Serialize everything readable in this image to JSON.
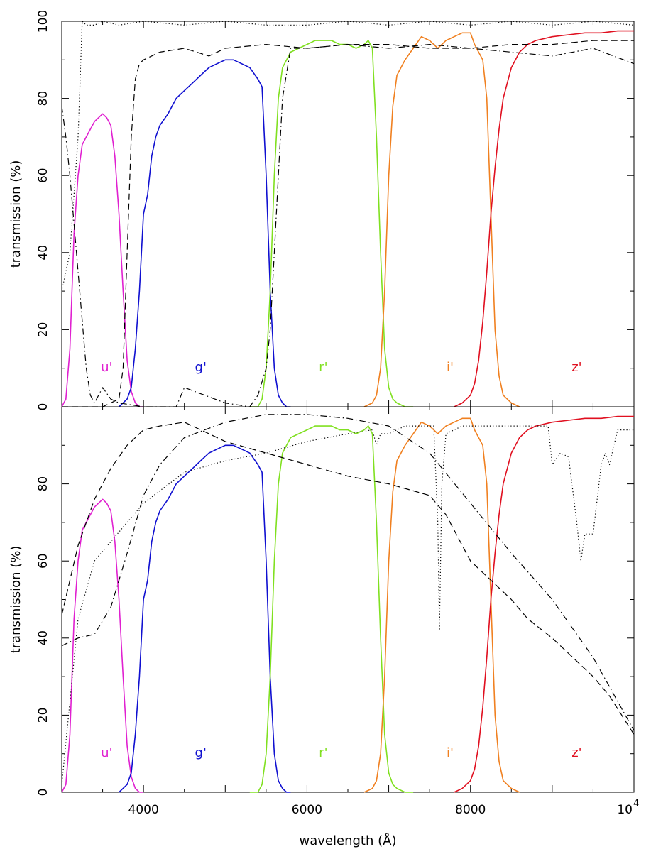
{
  "chart_data": [
    {
      "type": "line",
      "xlabel": "",
      "ylabel": "transmission (%)",
      "xlim": [
        3000,
        10000
      ],
      "ylim": [
        0,
        100
      ],
      "yticks": [
        "0",
        "20",
        "40",
        "60",
        "80",
        "100"
      ],
      "xticks": [],
      "series": [
        {
          "name": "u'",
          "color": "#e020d0",
          "style": "solid",
          "x": [
            3000,
            3050,
            3100,
            3150,
            3200,
            3250,
            3300,
            3350,
            3400,
            3450,
            3500,
            3550,
            3600,
            3650,
            3700,
            3750,
            3800,
            3850,
            3900,
            3950,
            4000
          ],
          "y": [
            0,
            2,
            15,
            45,
            60,
            68,
            70,
            72,
            74,
            75,
            76,
            75,
            73,
            65,
            50,
            30,
            12,
            4,
            1,
            0,
            0
          ]
        },
        {
          "name": "g'",
          "color": "#1010d0",
          "style": "solid",
          "x": [
            3700,
            3800,
            3850,
            3900,
            3950,
            4000,
            4050,
            4100,
            4150,
            4200,
            4300,
            4400,
            4500,
            4600,
            4700,
            4800,
            4900,
            5000,
            5100,
            5200,
            5300,
            5400,
            5450,
            5500,
            5550,
            5600,
            5650,
            5700,
            5750,
            5800
          ],
          "y": [
            0,
            2,
            5,
            15,
            30,
            50,
            55,
            65,
            70,
            73,
            76,
            80,
            82,
            84,
            86,
            88,
            89,
            90,
            90,
            89,
            88,
            85,
            83,
            60,
            30,
            10,
            3,
            1,
            0,
            0
          ]
        },
        {
          "name": "r'",
          "color": "#80e020",
          "style": "solid",
          "x": [
            5300,
            5400,
            5450,
            5500,
            5550,
            5600,
            5650,
            5700,
            5800,
            5900,
            6000,
            6100,
            6200,
            6300,
            6400,
            6500,
            6600,
            6700,
            6750,
            6800,
            6850,
            6900,
            6950,
            7000,
            7050,
            7100,
            7200,
            7300
          ],
          "y": [
            0,
            0,
            2,
            10,
            30,
            60,
            80,
            88,
            92,
            93,
            94,
            95,
            95,
            95,
            94,
            94,
            93,
            94,
            95,
            93,
            70,
            40,
            15,
            5,
            2,
            1,
            0,
            0
          ]
        },
        {
          "name": "i'",
          "color": "#f08020",
          "style": "solid",
          "x": [
            6700,
            6800,
            6850,
            6900,
            6950,
            7000,
            7050,
            7100,
            7200,
            7300,
            7400,
            7500,
            7600,
            7700,
            7800,
            7900,
            8000,
            8050,
            8100,
            8150,
            8200,
            8250,
            8300,
            8350,
            8400,
            8500,
            8600
          ],
          "y": [
            0,
            1,
            3,
            10,
            30,
            60,
            78,
            86,
            90,
            93,
            96,
            95,
            93,
            95,
            96,
            97,
            97,
            94,
            92,
            90,
            80,
            50,
            20,
            8,
            3,
            1,
            0
          ]
        },
        {
          "name": "z'",
          "color": "#e01020",
          "style": "solid",
          "x": [
            7800,
            7900,
            8000,
            8050,
            8100,
            8150,
            8200,
            8250,
            8300,
            8350,
            8400,
            8500,
            8600,
            8700,
            8800,
            9000,
            9200,
            9400,
            9600,
            9800,
            10000
          ],
          "y": [
            0,
            1,
            3,
            6,
            12,
            22,
            35,
            50,
            62,
            72,
            80,
            88,
            92,
            94,
            95,
            96,
            96.5,
            97,
            97,
            97.5,
            97.5
          ]
        },
        {
          "name": "",
          "color": "#000000",
          "style": "dotted",
          "x": [
            3000,
            3100,
            3200,
            3250,
            3300,
            3400,
            3500,
            3700,
            4000,
            4500,
            5000,
            5500,
            6000,
            6500,
            7000,
            7500,
            8000,
            8500,
            9000,
            9500,
            10000
          ],
          "y": [
            30,
            40,
            70,
            100,
            99,
            99,
            100,
            99,
            100,
            99,
            100,
            99,
            99,
            100,
            99,
            100,
            99,
            100,
            99,
            100,
            99
          ]
        },
        {
          "name": "",
          "color": "#000000",
          "style": "dashed",
          "x": [
            3000,
            3300,
            3500,
            3600,
            3700,
            3750,
            3800,
            3850,
            3900,
            3950,
            4000,
            4200,
            4500,
            4800,
            5000,
            5500,
            6000,
            6500,
            7000,
            7500,
            8000,
            8500,
            9000,
            9500,
            10000
          ],
          "y": [
            0,
            0,
            0,
            1,
            2,
            10,
            40,
            70,
            85,
            89,
            90,
            92,
            93,
            91,
            93,
            94,
            93,
            94,
            94,
            93,
            93,
            94,
            94,
            95,
            95
          ]
        },
        {
          "name": "",
          "color": "#000000",
          "style": "dashdot",
          "x": [
            3000,
            3050,
            3100,
            3200,
            3300,
            3350,
            3400,
            3500,
            3600,
            3700,
            4000,
            4400,
            4500,
            5000,
            5300,
            5400,
            5500,
            5550,
            5600,
            5650,
            5700,
            5800,
            6000,
            6500,
            7000,
            7500,
            8000,
            8500,
            9000,
            9500,
            10000
          ],
          "y": [
            78,
            70,
            60,
            35,
            10,
            3,
            1,
            5,
            2,
            1,
            0,
            0,
            5,
            1,
            0,
            3,
            10,
            20,
            40,
            60,
            80,
            93,
            93,
            94,
            93,
            94,
            93,
            92,
            91,
            93,
            89
          ]
        }
      ],
      "annotations": [
        "u'",
        "g'",
        "r'",
        "i'",
        "z'"
      ]
    },
    {
      "type": "line",
      "xlabel": "wavelength (Å)",
      "ylabel": "transmission (%)",
      "xlim": [
        3000,
        10000
      ],
      "ylim": [
        0,
        100
      ],
      "yticks": [
        "0",
        "20",
        "40",
        "60",
        "80"
      ],
      "xticks": [
        "4000",
        "6000",
        "8000",
        "10"
      ],
      "xtick_power": "4",
      "series": [
        {
          "name": "u'",
          "color": "#e020d0",
          "style": "solid",
          "x": [
            3000,
            3050,
            3100,
            3150,
            3200,
            3250,
            3300,
            3350,
            3400,
            3450,
            3500,
            3550,
            3600,
            3650,
            3700,
            3750,
            3800,
            3850,
            3900,
            3950,
            4000
          ],
          "y": [
            0,
            2,
            15,
            45,
            60,
            68,
            70,
            72,
            74,
            75,
            76,
            75,
            73,
            65,
            50,
            30,
            12,
            4,
            1,
            0,
            0
          ]
        },
        {
          "name": "g'",
          "color": "#1010d0",
          "style": "solid",
          "x": [
            3700,
            3800,
            3850,
            3900,
            3950,
            4000,
            4050,
            4100,
            4150,
            4200,
            4300,
            4400,
            4500,
            4600,
            4700,
            4800,
            4900,
            5000,
            5100,
            5200,
            5300,
            5400,
            5450,
            5500,
            5550,
            5600,
            5650,
            5700,
            5750,
            5800
          ],
          "y": [
            0,
            2,
            5,
            15,
            30,
            50,
            55,
            65,
            70,
            73,
            76,
            80,
            82,
            84,
            86,
            88,
            89,
            90,
            90,
            89,
            88,
            85,
            83,
            60,
            30,
            10,
            3,
            1,
            0,
            0
          ]
        },
        {
          "name": "r'",
          "color": "#80e020",
          "style": "solid",
          "x": [
            5300,
            5400,
            5450,
            5500,
            5550,
            5600,
            5650,
            5700,
            5800,
            5900,
            6000,
            6100,
            6200,
            6300,
            6400,
            6500,
            6600,
            6700,
            6750,
            6800,
            6850,
            6900,
            6950,
            7000,
            7050,
            7100,
            7200,
            7300
          ],
          "y": [
            0,
            0,
            2,
            10,
            30,
            60,
            80,
            88,
            92,
            93,
            94,
            95,
            95,
            95,
            94,
            94,
            93,
            94,
            95,
            93,
            70,
            40,
            15,
            5,
            2,
            1,
            0,
            0
          ]
        },
        {
          "name": "i'",
          "color": "#f08020",
          "style": "solid",
          "x": [
            6700,
            6800,
            6850,
            6900,
            6950,
            7000,
            7050,
            7100,
            7200,
            7300,
            7400,
            7500,
            7600,
            7700,
            7800,
            7900,
            8000,
            8050,
            8100,
            8150,
            8200,
            8250,
            8300,
            8350,
            8400,
            8500,
            8600
          ],
          "y": [
            0,
            1,
            3,
            10,
            30,
            60,
            78,
            86,
            90,
            93,
            96,
            95,
            93,
            95,
            96,
            97,
            97,
            94,
            92,
            90,
            80,
            50,
            20,
            8,
            3,
            1,
            0
          ]
        },
        {
          "name": "z'",
          "color": "#e01020",
          "style": "solid",
          "x": [
            7800,
            7900,
            8000,
            8050,
            8100,
            8150,
            8200,
            8250,
            8300,
            8350,
            8400,
            8500,
            8600,
            8700,
            8800,
            9000,
            9200,
            9400,
            9600,
            9800,
            10000
          ],
          "y": [
            0,
            1,
            3,
            6,
            12,
            22,
            35,
            50,
            62,
            72,
            80,
            88,
            92,
            94,
            95,
            96,
            96.5,
            97,
            97,
            97.5,
            97.5
          ]
        },
        {
          "name": "",
          "color": "#000000",
          "style": "dotted",
          "x": [
            3000,
            3200,
            3400,
            3600,
            3800,
            4000,
            4500,
            5000,
            5500,
            6000,
            6500,
            6800,
            6850,
            6900,
            7000,
            7100,
            7200,
            7300,
            7400,
            7550,
            7600,
            7620,
            7650,
            7700,
            7800,
            7900,
            8000,
            8200,
            8300,
            8400,
            8600,
            8800,
            8950,
            9000,
            9100,
            9200,
            9300,
            9350,
            9400,
            9500,
            9600,
            9650,
            9700,
            9800,
            9900,
            10000
          ],
          "y": [
            2,
            45,
            60,
            65,
            70,
            75,
            83,
            86,
            88,
            91,
            93,
            94,
            90,
            93,
            93,
            94,
            95,
            95,
            95,
            95,
            70,
            42,
            80,
            93,
            94,
            95,
            95,
            95,
            95,
            95,
            95,
            95,
            95,
            85,
            88,
            87,
            70,
            60,
            67,
            67,
            85,
            88,
            85,
            94,
            94,
            94
          ]
        },
        {
          "name": "",
          "color": "#000000",
          "style": "dashed",
          "x": [
            3000,
            3200,
            3400,
            3600,
            3800,
            4000,
            4200,
            4500,
            4800,
            5000,
            5500,
            6000,
            6500,
            7000,
            7500,
            7700,
            8000,
            8200,
            8500,
            8700,
            9000,
            9200,
            9500,
            9700,
            10000
          ],
          "y": [
            46,
            64,
            76,
            84,
            90,
            94,
            95,
            96,
            93,
            91,
            88,
            85,
            82,
            80,
            77,
            72,
            60,
            56,
            50,
            45,
            40,
            36,
            30,
            25,
            15
          ]
        },
        {
          "name": "",
          "color": "#000000",
          "style": "dashdot",
          "x": [
            3000,
            3200,
            3400,
            3600,
            3800,
            4000,
            4200,
            4500,
            5000,
            5500,
            6000,
            6500,
            7000,
            7500,
            8000,
            8500,
            9000,
            9500,
            10000
          ],
          "y": [
            38,
            40,
            41,
            48,
            62,
            77,
            85,
            92,
            96,
            98,
            98,
            97,
            95,
            88,
            75,
            62,
            50,
            35,
            16
          ]
        }
      ],
      "annotations": [
        "u'",
        "g'",
        "r'",
        "i'",
        "z'"
      ]
    }
  ]
}
